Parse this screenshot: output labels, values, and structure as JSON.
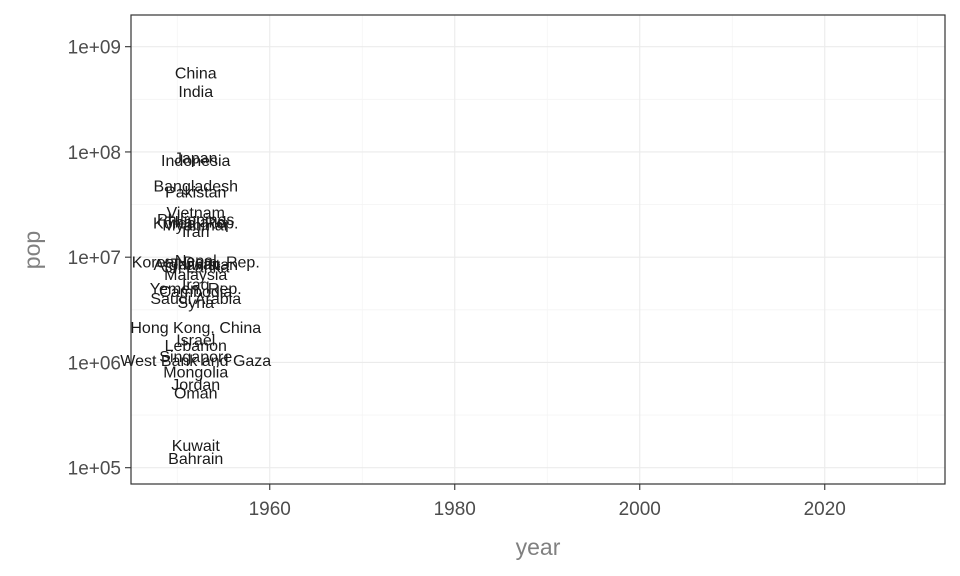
{
  "chart_data": {
    "type": "scatter",
    "xlabel": "year",
    "ylabel": "pop",
    "x_scale": "linear",
    "y_scale": "log10",
    "xlim": [
      1945,
      2033
    ],
    "ylim": [
      70000,
      2000000000
    ],
    "x_ticks": [
      {
        "value": 1960,
        "label": "1960"
      },
      {
        "value": 1980,
        "label": "1980"
      },
      {
        "value": 2000,
        "label": "2000"
      },
      {
        "value": 2020,
        "label": "2020"
      }
    ],
    "x_minor": [
      1950,
      1970,
      1990,
      2010,
      2030
    ],
    "y_ticks": [
      {
        "value": 100000,
        "label": "1e+05"
      },
      {
        "value": 1000000,
        "label": "1e+06"
      },
      {
        "value": 10000000,
        "label": "1e+07"
      },
      {
        "value": 100000000,
        "label": "1e+08"
      },
      {
        "value": 1000000000,
        "label": "1e+09"
      }
    ],
    "grid": true,
    "points": [
      {
        "label": "China",
        "x": 1952,
        "y": 556263527
      },
      {
        "label": "India",
        "x": 1952,
        "y": 372000000
      },
      {
        "label": "Japan",
        "x": 1952,
        "y": 86459025
      },
      {
        "label": "Indonesia",
        "x": 1952,
        "y": 82052000
      },
      {
        "label": "Bangladesh",
        "x": 1952,
        "y": 46886859
      },
      {
        "label": "Pakistan",
        "x": 1952,
        "y": 41346560
      },
      {
        "label": "Vietnam",
        "x": 1952,
        "y": 26246839
      },
      {
        "label": "Philippines",
        "x": 1952,
        "y": 22438691
      },
      {
        "label": "Thailand",
        "x": 1952,
        "y": 21289402
      },
      {
        "label": "Korea, Rep.",
        "x": 1952,
        "y": 20947571
      },
      {
        "label": "Myanmar",
        "x": 1952,
        "y": 20092996
      },
      {
        "label": "Iran",
        "x": 1952,
        "y": 17272000
      },
      {
        "label": "Nepal",
        "x": 1952,
        "y": 9182536
      },
      {
        "label": "Korea, Dem. Rep.",
        "x": 1952,
        "y": 8865488
      },
      {
        "label": "Afghanistan",
        "x": 1952,
        "y": 8425333
      },
      {
        "label": "Taiwan",
        "x": 1952,
        "y": 8550362
      },
      {
        "label": "Sri Lanka",
        "x": 1952,
        "y": 7982342
      },
      {
        "label": "Malaysia",
        "x": 1952,
        "y": 6748378
      },
      {
        "label": "Iraq",
        "x": 1952,
        "y": 5441766
      },
      {
        "label": "Cambodia",
        "x": 1952,
        "y": 4693836
      },
      {
        "label": "Yemen, Rep.",
        "x": 1952,
        "y": 4963829
      },
      {
        "label": "Saudi Arabia",
        "x": 1952,
        "y": 4005677
      },
      {
        "label": "Syria",
        "x": 1952,
        "y": 3661549
      },
      {
        "label": "Hong Kong, China",
        "x": 1952,
        "y": 2125900
      },
      {
        "label": "Israel",
        "x": 1952,
        "y": 1620914
      },
      {
        "label": "Lebanon",
        "x": 1952,
        "y": 1439529
      },
      {
        "label": "Singapore",
        "x": 1952,
        "y": 1127000
      },
      {
        "label": "West Bank and Gaza",
        "x": 1952,
        "y": 1030585
      },
      {
        "label": "Mongolia",
        "x": 1952,
        "y": 800663
      },
      {
        "label": "Jordan",
        "x": 1952,
        "y": 607914
      },
      {
        "label": "Oman",
        "x": 1952,
        "y": 507833
      },
      {
        "label": "Kuwait",
        "x": 1952,
        "y": 160000
      },
      {
        "label": "Bahrain",
        "x": 1952,
        "y": 120447
      }
    ]
  }
}
